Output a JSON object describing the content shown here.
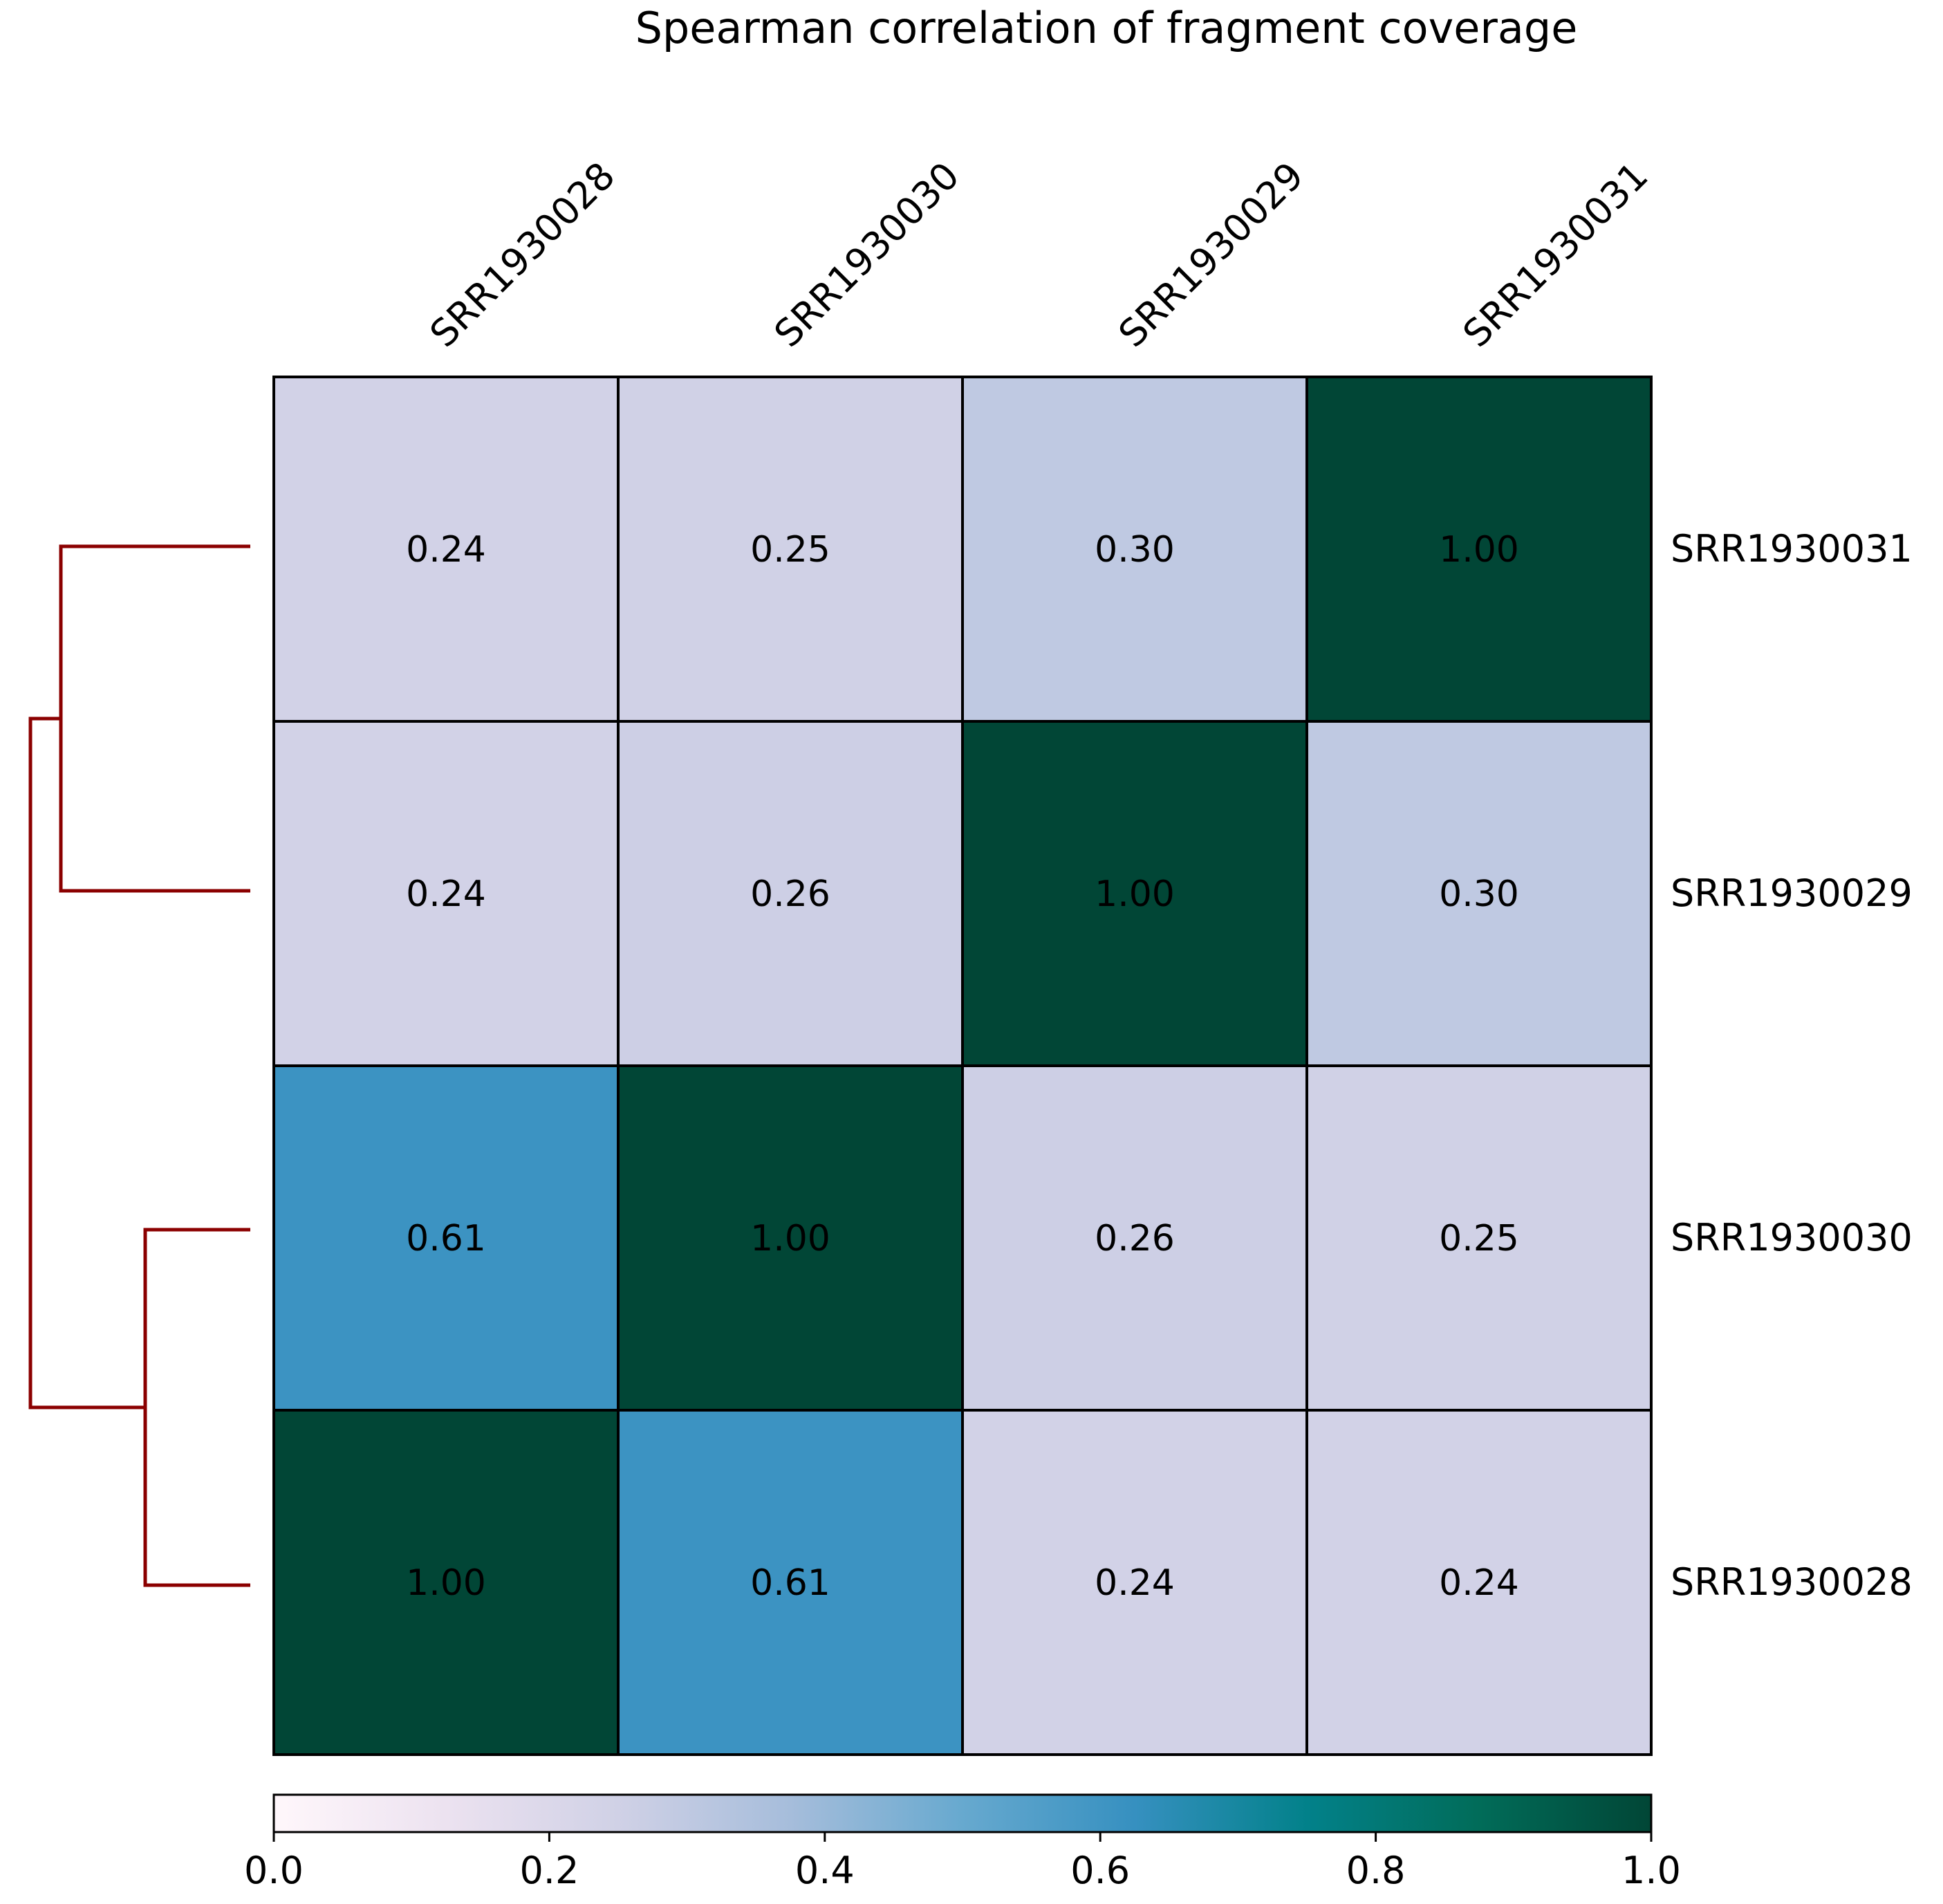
{
  "chart_data": {
    "type": "heatmap",
    "title": "Spearman correlation of fragment coverage",
    "columns": [
      "SRR1930028",
      "SRR1930030",
      "SRR1930029",
      "SRR1930031"
    ],
    "rows_top_to_bottom": [
      "SRR1930031",
      "SRR1930029",
      "SRR1930030",
      "SRR1930028"
    ],
    "values": [
      [
        0.24,
        0.25,
        0.3,
        1.0
      ],
      [
        0.24,
        0.26,
        1.0,
        0.3
      ],
      [
        0.61,
        1.0,
        0.26,
        0.25
      ],
      [
        1.0,
        0.61,
        0.24,
        0.24
      ]
    ],
    "value_format_decimals": 2,
    "colorbar": {
      "range": [
        0.0,
        1.0
      ],
      "ticks": [
        0.0,
        0.2,
        0.4,
        0.6,
        0.8,
        1.0
      ],
      "tick_labels": [
        "0.0",
        "0.2",
        "0.4",
        "0.6",
        "0.8",
        "1.0"
      ],
      "colormap": "PuBuGn",
      "stops": [
        "#fff7fb",
        "#ece2f0",
        "#d0d1e6",
        "#a6bddb",
        "#67a9cf",
        "#3690c0",
        "#02818a",
        "#016c59",
        "#014636"
      ]
    },
    "dendrogram": {
      "side": "left",
      "color": "#8b0000",
      "merges": [
        {
          "left": "SRR1930031",
          "right": "SRR1930029"
        },
        {
          "left": "SRR1930030",
          "right": "SRR1930028"
        },
        {
          "left": "cluster-1",
          "right": "cluster-2"
        }
      ]
    },
    "grid": true,
    "legend": "colorbar-bottom"
  }
}
